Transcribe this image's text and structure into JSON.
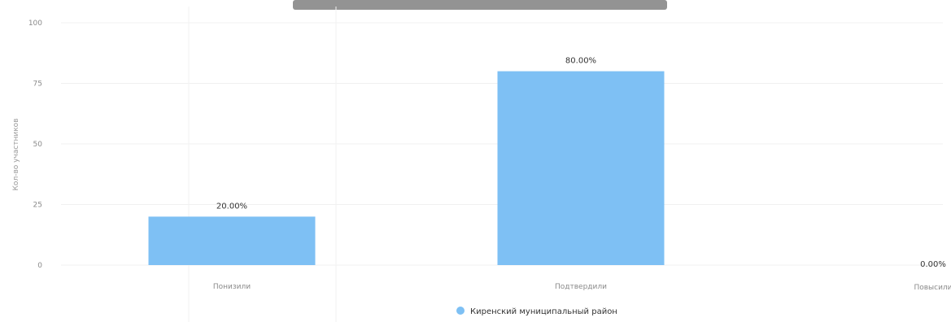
{
  "chart_data": {
    "type": "bar",
    "title": "",
    "ylabel": "Кол-во участников",
    "ylim": [
      0,
      100
    ],
    "yticks": [
      0,
      25,
      50,
      75,
      100
    ],
    "categories": [
      "Понизили",
      "Подтвердили",
      "Повысили"
    ],
    "series": [
      {
        "name": "Киренский муниципальный район",
        "values": [
          20,
          80,
          0
        ],
        "labels": [
          "20.00%",
          "80.00%",
          "0.00%"
        ],
        "color": "#7ec0f4"
      }
    ],
    "grid": true,
    "legend_position": "bottom-center"
  }
}
